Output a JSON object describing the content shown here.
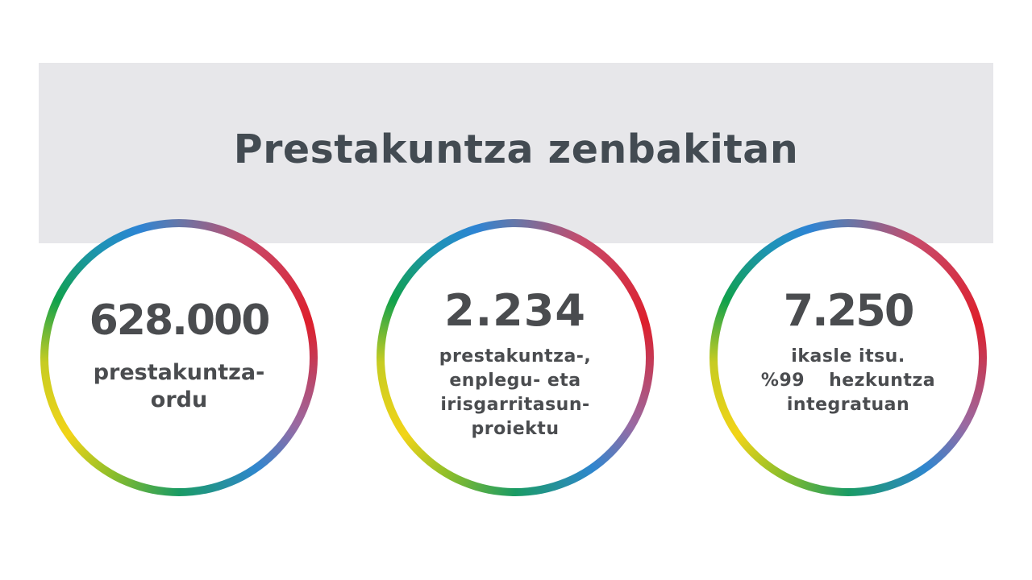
{
  "banner": {
    "title": "Prestakuntza zenbakitan",
    "background": "#e7e7ea",
    "text_color": "#434b52"
  },
  "stats": [
    {
      "number": "628.000",
      "label_lines": [
        "prestakuntza-",
        "ordu"
      ]
    },
    {
      "number": "2.234",
      "label_lines": [
        "prestakuntza-,",
        "enplegu- eta",
        "irisgarritasun-",
        "proiektu"
      ]
    },
    {
      "number": "7.250",
      "label_lines": [
        "ikasle itsu.",
        "%99",
        "hezkuntza",
        "integratuan"
      ]
    }
  ],
  "ring_colors": [
    "#dd1f2c",
    "#2f86cf",
    "#11a14c",
    "#f2d418"
  ]
}
